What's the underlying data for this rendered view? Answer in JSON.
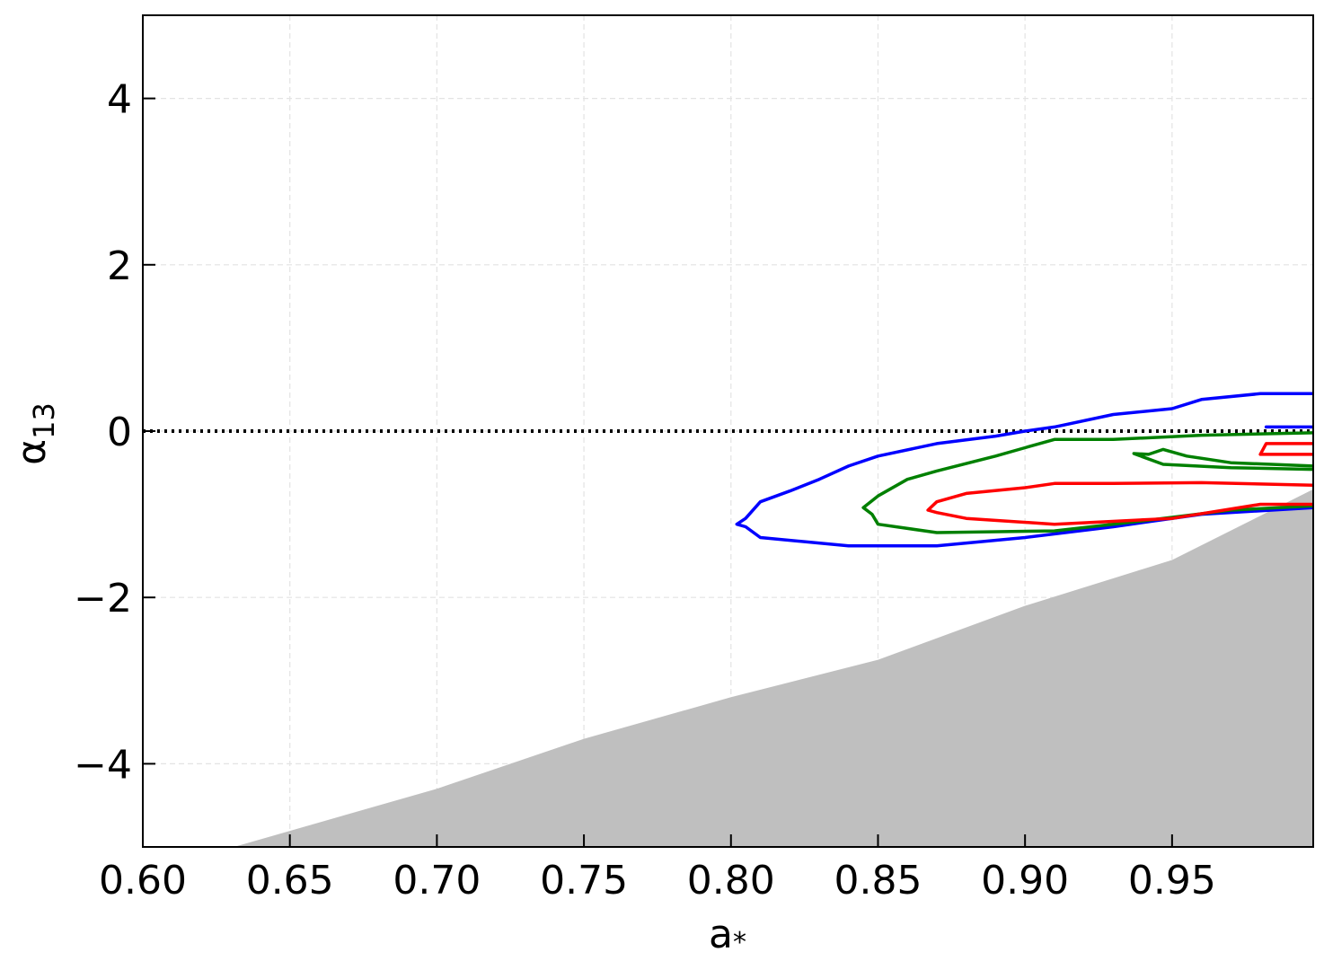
{
  "chart_data": {
    "type": "contour",
    "title": "",
    "xlabel": "a",
    "xlabel_subscript": "*",
    "ylabel": "α",
    "ylabel_subscript": "13",
    "xlim": [
      0.6,
      0.998
    ],
    "ylim": [
      -5.0,
      5.0
    ],
    "x_ticks": [
      0.6,
      0.65,
      0.7,
      0.75,
      0.8,
      0.85,
      0.9,
      0.95
    ],
    "x_tick_labels": [
      "0.60",
      "0.65",
      "0.70",
      "0.75",
      "0.80",
      "0.85",
      "0.90",
      "0.95"
    ],
    "y_ticks": [
      -4,
      -2,
      0,
      2,
      4
    ],
    "y_tick_labels": [
      "−4",
      "−2",
      "0",
      "2",
      "4"
    ],
    "grid": true,
    "reference_line": {
      "y": 0,
      "style": "dotted",
      "color": "#000000"
    },
    "excluded_region": {
      "color": "#bfbfbf",
      "boundary": [
        [
          0.631,
          -5.0
        ],
        [
          0.7,
          -4.3
        ],
        [
          0.75,
          -3.7
        ],
        [
          0.8,
          -3.2
        ],
        [
          0.85,
          -2.75
        ],
        [
          0.9,
          -2.1
        ],
        [
          0.95,
          -1.55
        ],
        [
          0.998,
          -0.7
        ]
      ]
    },
    "series": [
      {
        "color": "#0000ff",
        "paths": [
          [
            [
              0.998,
              0.45
            ],
            [
              0.98,
              0.45
            ],
            [
              0.96,
              0.38
            ],
            [
              0.95,
              0.27
            ],
            [
              0.93,
              0.2
            ],
            [
              0.91,
              0.05
            ],
            [
              0.9,
              0.0
            ],
            [
              0.89,
              -0.06
            ],
            [
              0.87,
              -0.15
            ],
            [
              0.85,
              -0.3
            ],
            [
              0.84,
              -0.42
            ],
            [
              0.83,
              -0.58
            ],
            [
              0.82,
              -0.72
            ],
            [
              0.81,
              -0.85
            ],
            [
              0.805,
              -1.05
            ],
            [
              0.802,
              -1.12
            ],
            [
              0.805,
              -1.15
            ],
            [
              0.81,
              -1.28
            ],
            [
              0.84,
              -1.38
            ],
            [
              0.87,
              -1.38
            ],
            [
              0.9,
              -1.28
            ],
            [
              0.93,
              -1.15
            ],
            [
              0.96,
              -1.0
            ],
            [
              0.998,
              -0.92
            ]
          ],
          [
            [
              0.982,
              0.05
            ],
            [
              0.998,
              0.05
            ]
          ]
        ]
      },
      {
        "color": "#008000",
        "paths": [
          [
            [
              0.998,
              -0.02
            ],
            [
              0.96,
              -0.05
            ],
            [
              0.93,
              -0.1
            ],
            [
              0.91,
              -0.1
            ],
            [
              0.9,
              -0.2
            ],
            [
              0.89,
              -0.3
            ],
            [
              0.87,
              -0.48
            ],
            [
              0.86,
              -0.58
            ],
            [
              0.85,
              -0.78
            ],
            [
              0.845,
              -0.92
            ],
            [
              0.848,
              -1.0
            ],
            [
              0.85,
              -1.12
            ],
            [
              0.87,
              -1.22
            ],
            [
              0.91,
              -1.2
            ],
            [
              0.94,
              -1.08
            ],
            [
              0.97,
              -0.95
            ],
            [
              0.998,
              -0.9
            ]
          ],
          [
            [
              0.998,
              -0.42
            ],
            [
              0.97,
              -0.38
            ],
            [
              0.955,
              -0.3
            ],
            [
              0.947,
              -0.22
            ],
            [
              0.942,
              -0.28
            ],
            [
              0.937,
              -0.27
            ],
            [
              0.947,
              -0.4
            ],
            [
              0.97,
              -0.44
            ],
            [
              0.998,
              -0.46
            ]
          ]
        ]
      },
      {
        "color": "#ff0000",
        "paths": [
          [
            [
              0.998,
              -0.65
            ],
            [
              0.96,
              -0.62
            ],
            [
              0.93,
              -0.63
            ],
            [
              0.91,
              -0.63
            ],
            [
              0.9,
              -0.68
            ],
            [
              0.88,
              -0.75
            ],
            [
              0.87,
              -0.85
            ],
            [
              0.867,
              -0.95
            ],
            [
              0.87,
              -0.98
            ],
            [
              0.88,
              -1.05
            ],
            [
              0.91,
              -1.12
            ],
            [
              0.95,
              -1.05
            ],
            [
              0.98,
              -0.88
            ],
            [
              0.998,
              -0.88
            ]
          ],
          [
            [
              0.998,
              -0.15
            ],
            [
              0.982,
              -0.15
            ],
            [
              0.98,
              -0.28
            ],
            [
              0.998,
              -0.28
            ]
          ]
        ]
      }
    ]
  }
}
